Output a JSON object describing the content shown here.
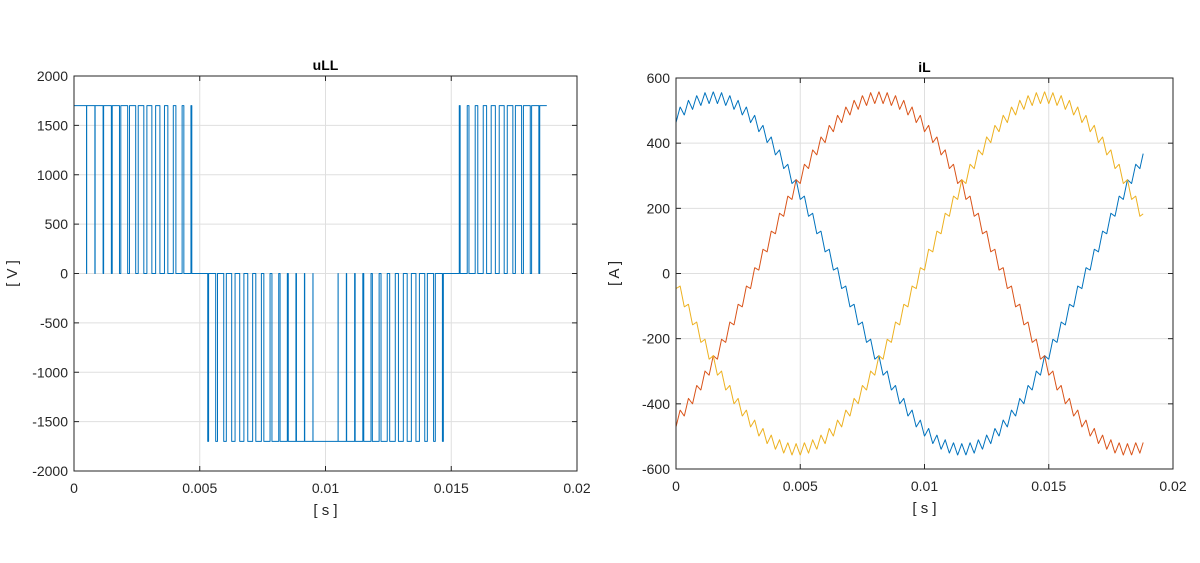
{
  "colors": {
    "blue": "#0072BD",
    "orange": "#D95319",
    "yellow": "#EDB120",
    "grid": "#dfdfdf",
    "axis": "#262626"
  },
  "chart_data": [
    {
      "type": "line",
      "title": "uLL",
      "xlabel": "[ s ]",
      "ylabel": "[ V ]",
      "xlim": [
        0,
        0.02
      ],
      "ylim": [
        -2000,
        2000
      ],
      "xticks": [
        0,
        0.005,
        0.01,
        0.015,
        0.02
      ],
      "xtick_labels": [
        "0",
        "0.005",
        "0.01",
        "0.015",
        "0.02"
      ],
      "yticks": [
        -2000,
        -1500,
        -1000,
        -500,
        0,
        500,
        1000,
        1500,
        2000
      ],
      "ytick_labels": [
        "-2000",
        "-1500",
        "-1000",
        "-500",
        "0",
        "500",
        "1000",
        "1500",
        "2000"
      ],
      "grid": true,
      "series": [
        {
          "color": "#0072BD",
          "signal": "pwm_line_voltage",
          "t_end": 0.0188,
          "amplitude": 1700,
          "fundamental_hz": 50,
          "switching_hz": 3000,
          "phase_deg": 90
        }
      ]
    },
    {
      "type": "line",
      "title": "iL",
      "xlabel": "[ s ]",
      "ylabel": "[ A ]",
      "xlim": [
        0,
        0.02
      ],
      "ylim": [
        -600,
        600
      ],
      "xticks": [
        0,
        0.005,
        0.01,
        0.015,
        0.02
      ],
      "xtick_labels": [
        "0",
        "0.005",
        "0.01",
        "0.015",
        "0.02"
      ],
      "yticks": [
        -600,
        -400,
        -200,
        0,
        200,
        400,
        600
      ],
      "ytick_labels": [
        "-600",
        "-400",
        "-200",
        "0",
        "200",
        "400",
        "600"
      ],
      "grid": true,
      "series": [
        {
          "color": "#0072BD",
          "signal": "sine_with_ripple",
          "t_end": 0.0188,
          "amplitude": 540,
          "fundamental_hz": 50,
          "phase_deg": 63,
          "ripple": 18,
          "switching_hz": 3000
        },
        {
          "color": "#D95319",
          "signal": "sine_with_ripple",
          "t_end": 0.0188,
          "amplitude": 540,
          "fundamental_hz": 50,
          "phase_deg": -57,
          "ripple": 18,
          "switching_hz": 3000
        },
        {
          "color": "#EDB120",
          "signal": "sine_with_ripple",
          "t_end": 0.0188,
          "amplitude": 540,
          "fundamental_hz": 50,
          "phase_deg": 183,
          "ripple": 18,
          "switching_hz": 3000
        }
      ]
    }
  ]
}
